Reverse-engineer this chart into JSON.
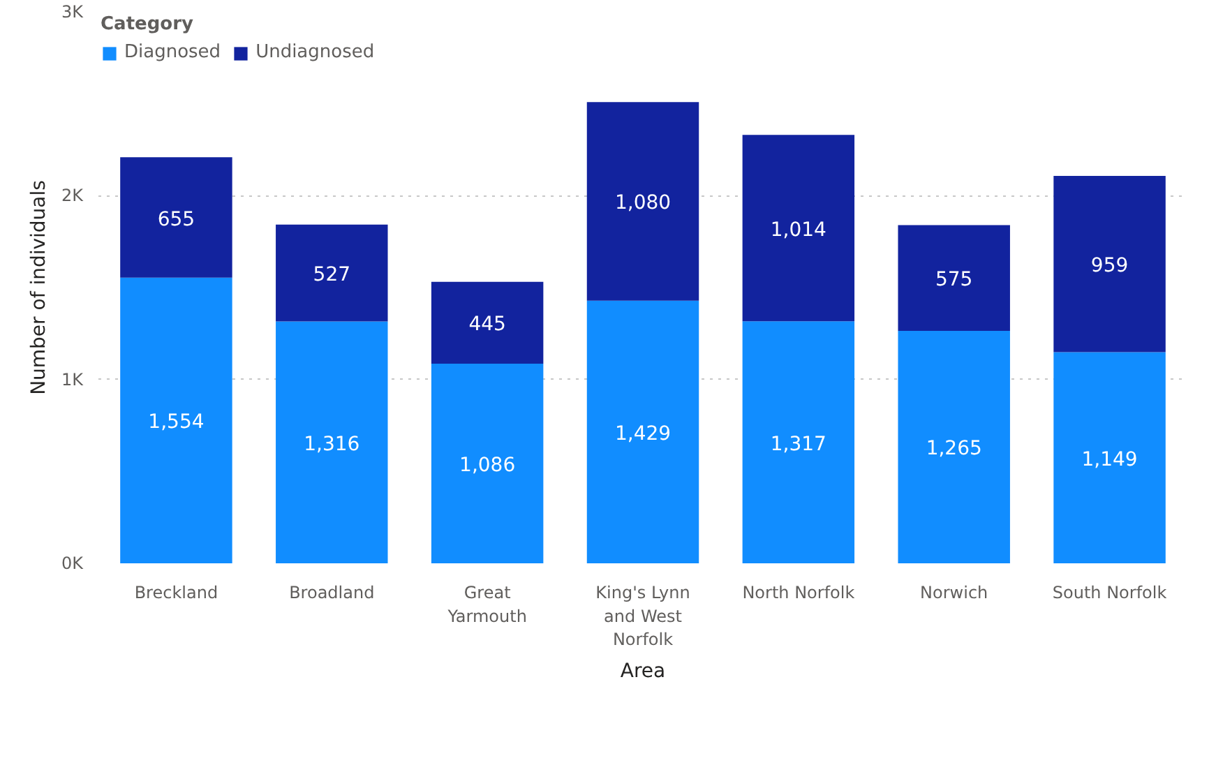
{
  "chart_data": {
    "type": "bar",
    "stacked": true,
    "xlabel": "Area",
    "ylabel": "Number of individuals",
    "legend_title": "Category",
    "categories": [
      "Breckland",
      "Broadland",
      "Great Yarmouth",
      "King's Lynn and West Norfolk",
      "North Norfolk",
      "Norwich",
      "South Norfolk"
    ],
    "series": [
      {
        "name": "Diagnosed",
        "color": "#118dff",
        "values": [
          1554,
          1316,
          1086,
          1429,
          1317,
          1265,
          1149
        ],
        "value_labels": [
          "1,554",
          "1,316",
          "1,086",
          "1,429",
          "1,317",
          "1,265",
          "1,149"
        ]
      },
      {
        "name": "Undiagnosed",
        "color": "#12239e",
        "values": [
          655,
          527,
          445,
          1080,
          1014,
          575,
          959
        ],
        "value_labels": [
          "655",
          "527",
          "445",
          "1,080",
          "1,014",
          "575",
          "959"
        ]
      }
    ],
    "ylim": [
      0,
      3000
    ],
    "yticks": [
      {
        "value": 0,
        "label": "0K"
      },
      {
        "value": 1000,
        "label": "1K"
      },
      {
        "value": 2000,
        "label": "2K"
      },
      {
        "value": 3000,
        "label": "3K"
      }
    ],
    "grid": "y",
    "legend": "top left"
  }
}
